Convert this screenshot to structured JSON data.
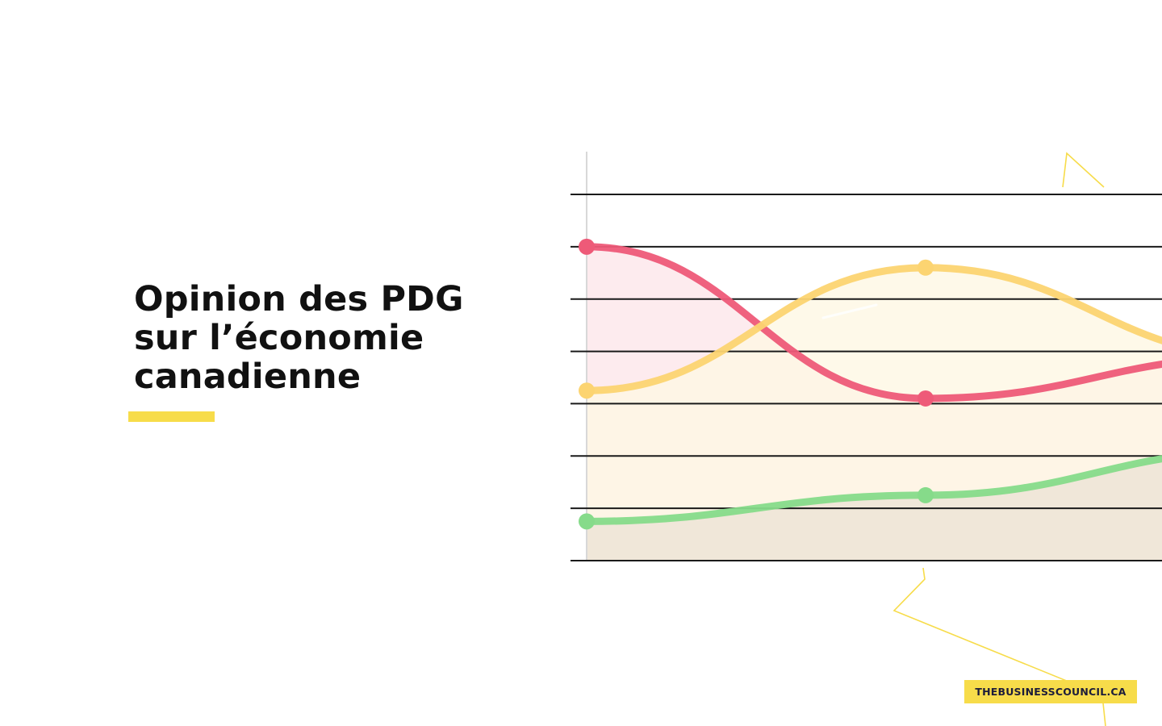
{
  "title": {
    "lines": [
      "Opinion des PDG",
      "sur l’économie",
      "canadienne"
    ]
  },
  "brand": {
    "label": "THEBUSINESSCOUNCIL.CA"
  },
  "colors": {
    "accent": "#f7dc4a",
    "title_text": "#111111",
    "grid": "#1a1a1a",
    "series_red": "#ee5a78",
    "series_yellow": "#fcd471",
    "series_green": "#86db8a"
  },
  "chart_data": {
    "type": "line",
    "x": [
      0,
      1,
      2
    ],
    "ylim": [
      0,
      7
    ],
    "series": [
      {
        "values": [
          6.0,
          3.1,
          3.9
        ],
        "color": "#ee5a78",
        "fill": "#fde6ea"
      },
      {
        "values": [
          3.25,
          5.6,
          3.9
        ],
        "color": "#fcd471",
        "fill": "#fef7e4"
      },
      {
        "values": [
          0.75,
          1.25,
          2.1
        ],
        "color": "#86db8a",
        "fill": "#efe6d8"
      }
    ],
    "grid": true,
    "gridlines": 8
  }
}
